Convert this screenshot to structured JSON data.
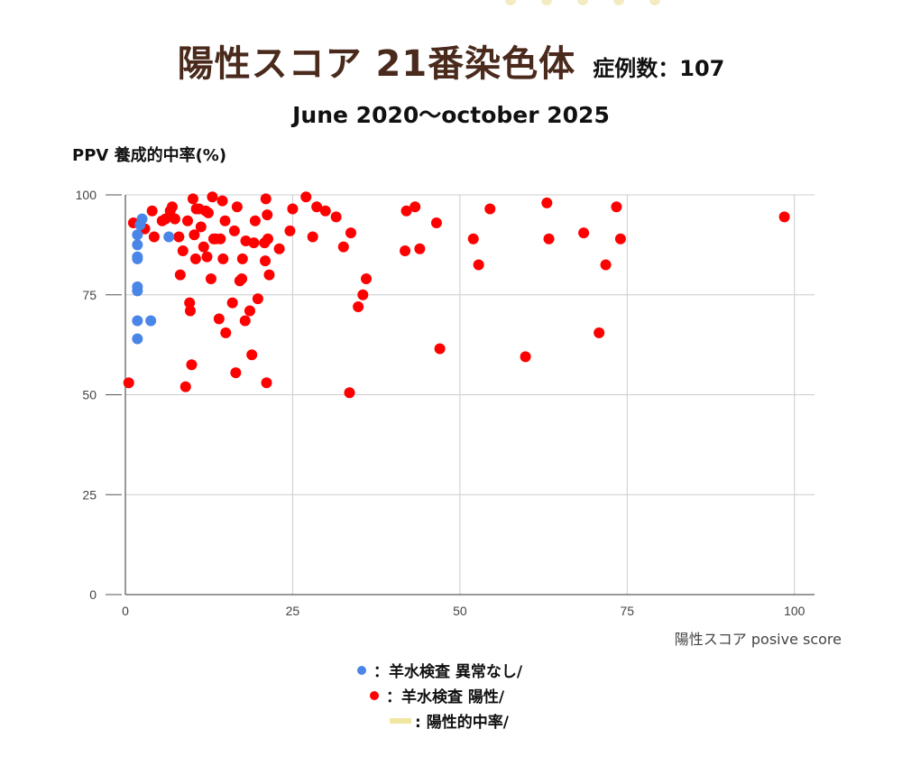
{
  "title": {
    "main": "陽性スコア 21番染色体",
    "case_count": "症例数：107",
    "date_range": "June 2020～october 2025"
  },
  "colors": {
    "title": "#4a2a1c",
    "normal": "#4a86e8",
    "positive": "#ff0000",
    "ppv_line": "#f0e6a0",
    "grid": "#cccccc",
    "decoration": "#f3ecc0"
  },
  "legend": {
    "normal": "：羊水検査 異常なし/",
    "positive": "：羊水検査 陽性/",
    "ppv": ": 陽性的中率/"
  },
  "chart_data": {
    "type": "scatter",
    "ylabel": "PPV 養成的中率(%)",
    "xlabel": "陽性スコア posive score",
    "xlim": [
      0,
      103
    ],
    "ylim": [
      0,
      100
    ],
    "xticks": [
      0,
      25,
      50,
      75,
      100
    ],
    "yticks": [
      0,
      25,
      50,
      75,
      100
    ],
    "grid": true,
    "series": [
      {
        "name": "羊水検査 異常なし",
        "points": [
          [
            2.5,
            94
          ],
          [
            2.2,
            92.5
          ],
          [
            1.8,
            90
          ],
          [
            1.8,
            87.5
          ],
          [
            1.8,
            84.5
          ],
          [
            1.8,
            84
          ],
          [
            1.8,
            77
          ],
          [
            1.8,
            76
          ],
          [
            1.8,
            68.5
          ],
          [
            1.8,
            64
          ],
          [
            3.8,
            68.5
          ],
          [
            6.5,
            89.5
          ]
        ]
      },
      {
        "name": "羊水検査 陽性",
        "points": [
          [
            0.5,
            53
          ],
          [
            1.2,
            93
          ],
          [
            2.9,
            91.5
          ],
          [
            4,
            96
          ],
          [
            4.3,
            89.5
          ],
          [
            5.5,
            93.5
          ],
          [
            6,
            94
          ],
          [
            6.7,
            96
          ],
          [
            7,
            97
          ],
          [
            7.4,
            94
          ],
          [
            8,
            89.5
          ],
          [
            8.2,
            80
          ],
          [
            8.6,
            86
          ],
          [
            9,
            52
          ],
          [
            9.3,
            93.5
          ],
          [
            9.6,
            73
          ],
          [
            9.7,
            71
          ],
          [
            9.9,
            57.5
          ],
          [
            10.1,
            99
          ],
          [
            10.3,
            90
          ],
          [
            10.5,
            84
          ],
          [
            10.6,
            96.5
          ],
          [
            11,
            96.5
          ],
          [
            11.3,
            92
          ],
          [
            11.7,
            87
          ],
          [
            12,
            96
          ],
          [
            12.2,
            84.5
          ],
          [
            12.4,
            95.5
          ],
          [
            12.8,
            79
          ],
          [
            13,
            99.5
          ],
          [
            13.2,
            89
          ],
          [
            13.5,
            89
          ],
          [
            14,
            69
          ],
          [
            14.2,
            89
          ],
          [
            14.5,
            98.5
          ],
          [
            14.6,
            84
          ],
          [
            14.9,
            93.5
          ],
          [
            15,
            65.5
          ],
          [
            16,
            73
          ],
          [
            16.3,
            91
          ],
          [
            16.5,
            55.5
          ],
          [
            16.7,
            97
          ],
          [
            17.1,
            78.5
          ],
          [
            17.4,
            79
          ],
          [
            17.5,
            84
          ],
          [
            17.9,
            68.5
          ],
          [
            18,
            88.5
          ],
          [
            18.6,
            71
          ],
          [
            18.9,
            60
          ],
          [
            19.2,
            88
          ],
          [
            19.4,
            93.5
          ],
          [
            19.8,
            74
          ],
          [
            20.8,
            88
          ],
          [
            20.9,
            83.5
          ],
          [
            21,
            99
          ],
          [
            21.1,
            53
          ],
          [
            21.2,
            95
          ],
          [
            21.3,
            89
          ],
          [
            21.5,
            80
          ],
          [
            23,
            86.5
          ],
          [
            24.6,
            91
          ],
          [
            25,
            96.5
          ],
          [
            27,
            99.5
          ],
          [
            28,
            89.5
          ],
          [
            28.6,
            97
          ],
          [
            29.9,
            96
          ],
          [
            31.5,
            94.5
          ],
          [
            32.6,
            87
          ],
          [
            33.5,
            50.5
          ],
          [
            33.7,
            90.5
          ],
          [
            34.8,
            72
          ],
          [
            35.5,
            75
          ],
          [
            36,
            79
          ],
          [
            41.8,
            86
          ],
          [
            42,
            96
          ],
          [
            43.3,
            97
          ],
          [
            44,
            86.5
          ],
          [
            46.5,
            93
          ],
          [
            47,
            61.5
          ],
          [
            52,
            89
          ],
          [
            52.8,
            82.5
          ],
          [
            54.5,
            96.5
          ],
          [
            59.8,
            59.5
          ],
          [
            63,
            98
          ],
          [
            63.3,
            89
          ],
          [
            68.5,
            90.5
          ],
          [
            70.8,
            65.5
          ],
          [
            71.8,
            82.5
          ],
          [
            73.4,
            97
          ],
          [
            74,
            89
          ],
          [
            98.5,
            94.5
          ]
        ]
      }
    ]
  }
}
